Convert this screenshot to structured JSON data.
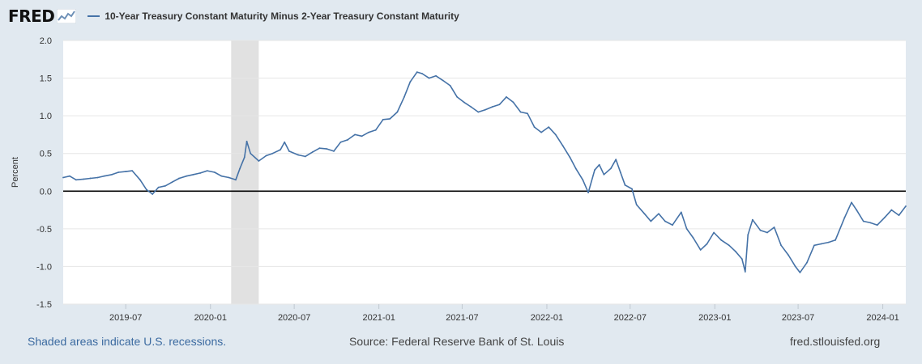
{
  "header": {
    "logo_text": "FRED",
    "logo_icon": "line-graph-icon",
    "series_title": "10-Year Treasury Constant Maturity Minus 2-Year Treasury Constant Maturity"
  },
  "footer": {
    "recession_note": "Shaded areas indicate U.S. recessions.",
    "source": "Source: Federal Reserve Bank of St. Louis",
    "site": "fred.stlouisfed.org"
  },
  "colors": {
    "series": "#4572a7",
    "recession": "#e1e1e1",
    "zero_line": "#000000",
    "background": "#e1e9f0"
  },
  "chart_data": {
    "type": "line",
    "ylabel": "Percent",
    "xlabel": "",
    "ylim": [
      -1.5,
      2.0
    ],
    "xlim": [
      "2019-02-15",
      "2024-02-20"
    ],
    "y_ticks": [
      "2.0",
      "1.5",
      "1.0",
      "0.5",
      "0.0",
      "-0.5",
      "-1.0",
      "-1.5"
    ],
    "x_ticks": [
      "2019-07",
      "2020-01",
      "2020-07",
      "2021-01",
      "2021-07",
      "2022-01",
      "2022-07",
      "2023-01",
      "2023-07",
      "2024-01"
    ],
    "grid": "horizontal",
    "recession": {
      "start": "2020-02-15",
      "end": "2020-04-15"
    },
    "zero_line": 0,
    "series": [
      {
        "values": [
          [
            "2019-02-15",
            0.18
          ],
          [
            "2019-03-01",
            0.2
          ],
          [
            "2019-03-15",
            0.15
          ],
          [
            "2019-04-01",
            0.16
          ],
          [
            "2019-04-15",
            0.17
          ],
          [
            "2019-05-01",
            0.18
          ],
          [
            "2019-05-15",
            0.2
          ],
          [
            "2019-06-01",
            0.22
          ],
          [
            "2019-06-15",
            0.25
          ],
          [
            "2019-07-01",
            0.26
          ],
          [
            "2019-07-15",
            0.27
          ],
          [
            "2019-08-01",
            0.15
          ],
          [
            "2019-08-15",
            0.02
          ],
          [
            "2019-08-28",
            -0.04
          ],
          [
            "2019-09-10",
            0.05
          ],
          [
            "2019-09-25",
            0.07
          ],
          [
            "2019-10-10",
            0.12
          ],
          [
            "2019-10-25",
            0.17
          ],
          [
            "2019-11-10",
            0.2
          ],
          [
            "2019-11-25",
            0.22
          ],
          [
            "2019-12-10",
            0.24
          ],
          [
            "2019-12-25",
            0.27
          ],
          [
            "2020-01-10",
            0.25
          ],
          [
            "2020-01-25",
            0.2
          ],
          [
            "2020-02-10",
            0.18
          ],
          [
            "2020-02-25",
            0.15
          ],
          [
            "2020-03-05",
            0.3
          ],
          [
            "2020-03-15",
            0.45
          ],
          [
            "2020-03-20",
            0.66
          ],
          [
            "2020-03-28",
            0.5
          ],
          [
            "2020-04-15",
            0.4
          ],
          [
            "2020-05-01",
            0.47
          ],
          [
            "2020-05-15",
            0.5
          ],
          [
            "2020-06-01",
            0.55
          ],
          [
            "2020-06-10",
            0.65
          ],
          [
            "2020-06-20",
            0.53
          ],
          [
            "2020-07-10",
            0.48
          ],
          [
            "2020-07-25",
            0.46
          ],
          [
            "2020-08-10",
            0.52
          ],
          [
            "2020-08-25",
            0.57
          ],
          [
            "2020-09-10",
            0.56
          ],
          [
            "2020-09-25",
            0.53
          ],
          [
            "2020-10-10",
            0.65
          ],
          [
            "2020-10-25",
            0.68
          ],
          [
            "2020-11-10",
            0.75
          ],
          [
            "2020-11-25",
            0.73
          ],
          [
            "2020-12-10",
            0.78
          ],
          [
            "2020-12-25",
            0.81
          ],
          [
            "2021-01-10",
            0.95
          ],
          [
            "2021-01-25",
            0.96
          ],
          [
            "2021-02-10",
            1.05
          ],
          [
            "2021-02-25",
            1.25
          ],
          [
            "2021-03-10",
            1.45
          ],
          [
            "2021-03-25",
            1.58
          ],
          [
            "2021-04-05",
            1.56
          ],
          [
            "2021-04-20",
            1.5
          ],
          [
            "2021-05-05",
            1.53
          ],
          [
            "2021-05-20",
            1.47
          ],
          [
            "2021-06-05",
            1.4
          ],
          [
            "2021-06-20",
            1.25
          ],
          [
            "2021-07-05",
            1.18
          ],
          [
            "2021-07-20",
            1.12
          ],
          [
            "2021-08-05",
            1.05
          ],
          [
            "2021-08-20",
            1.08
          ],
          [
            "2021-09-05",
            1.12
          ],
          [
            "2021-09-20",
            1.15
          ],
          [
            "2021-10-05",
            1.25
          ],
          [
            "2021-10-20",
            1.18
          ],
          [
            "2021-11-05",
            1.05
          ],
          [
            "2021-11-20",
            1.03
          ],
          [
            "2021-12-05",
            0.85
          ],
          [
            "2021-12-20",
            0.78
          ],
          [
            "2022-01-05",
            0.85
          ],
          [
            "2022-01-20",
            0.75
          ],
          [
            "2022-02-05",
            0.6
          ],
          [
            "2022-02-20",
            0.45
          ],
          [
            "2022-03-05",
            0.3
          ],
          [
            "2022-03-20",
            0.15
          ],
          [
            "2022-04-01",
            -0.02
          ],
          [
            "2022-04-15",
            0.28
          ],
          [
            "2022-04-25",
            0.35
          ],
          [
            "2022-05-05",
            0.22
          ],
          [
            "2022-05-20",
            0.3
          ],
          [
            "2022-05-31",
            0.42
          ],
          [
            "2022-06-10",
            0.25
          ],
          [
            "2022-06-20",
            0.08
          ],
          [
            "2022-07-05",
            0.03
          ],
          [
            "2022-07-15",
            -0.18
          ],
          [
            "2022-08-01",
            -0.3
          ],
          [
            "2022-08-15",
            -0.4
          ],
          [
            "2022-09-01",
            -0.3
          ],
          [
            "2022-09-15",
            -0.4
          ],
          [
            "2022-10-01",
            -0.45
          ],
          [
            "2022-10-20",
            -0.28
          ],
          [
            "2022-11-01",
            -0.5
          ],
          [
            "2022-11-15",
            -0.62
          ],
          [
            "2022-12-01",
            -0.78
          ],
          [
            "2022-12-15",
            -0.7
          ],
          [
            "2022-12-30",
            -0.55
          ],
          [
            "2023-01-15",
            -0.65
          ],
          [
            "2023-02-01",
            -0.72
          ],
          [
            "2023-02-15",
            -0.8
          ],
          [
            "2023-03-01",
            -0.9
          ],
          [
            "2023-03-08",
            -1.07
          ],
          [
            "2023-03-14",
            -0.58
          ],
          [
            "2023-03-24",
            -0.38
          ],
          [
            "2023-04-10",
            -0.52
          ],
          [
            "2023-04-25",
            -0.55
          ],
          [
            "2023-05-10",
            -0.48
          ],
          [
            "2023-05-25",
            -0.72
          ],
          [
            "2023-06-10",
            -0.85
          ],
          [
            "2023-06-25",
            -1.0
          ],
          [
            "2023-07-05",
            -1.08
          ],
          [
            "2023-07-20",
            -0.95
          ],
          [
            "2023-08-05",
            -0.72
          ],
          [
            "2023-08-20",
            -0.7
          ],
          [
            "2023-09-05",
            -0.68
          ],
          [
            "2023-09-20",
            -0.65
          ],
          [
            "2023-10-10",
            -0.35
          ],
          [
            "2023-10-25",
            -0.15
          ],
          [
            "2023-11-05",
            -0.25
          ],
          [
            "2023-11-20",
            -0.4
          ],
          [
            "2023-12-05",
            -0.42
          ],
          [
            "2023-12-20",
            -0.45
          ],
          [
            "2024-01-05",
            -0.35
          ],
          [
            "2024-01-20",
            -0.25
          ],
          [
            "2024-02-05",
            -0.32
          ],
          [
            "2024-02-20",
            -0.2
          ]
        ]
      }
    ]
  }
}
